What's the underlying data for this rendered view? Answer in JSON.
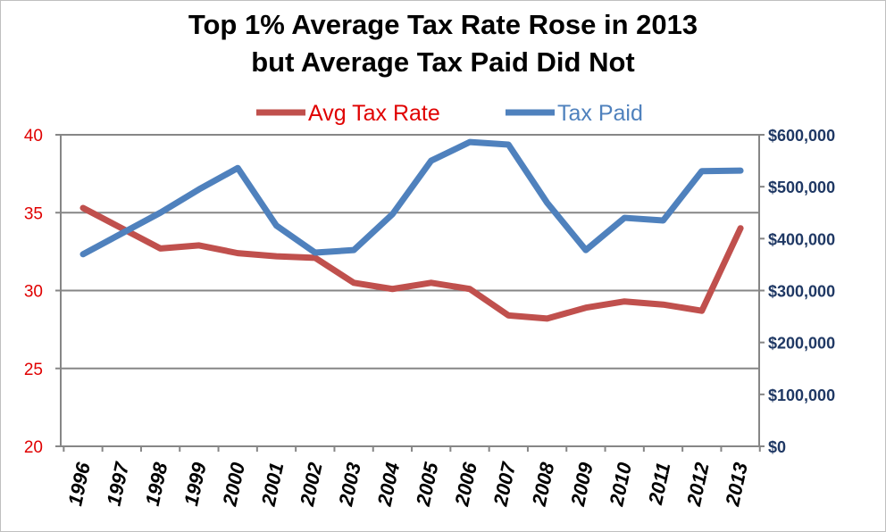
{
  "chart_data": {
    "type": "line",
    "title": "Top 1% Average Tax Rate Rose in 2013",
    "subtitle": "but Average Tax Paid Did Not",
    "categories": [
      "1996",
      "1997",
      "1998",
      "1999",
      "2000",
      "2001",
      "2002",
      "2003",
      "2004",
      "2005",
      "2006",
      "2007",
      "2008",
      "2009",
      "2010",
      "2011",
      "2012",
      "2013"
    ],
    "series": [
      {
        "name": "Avg Tax Rate",
        "axis": "left",
        "color": "#c0504d",
        "values": [
          35.3,
          34.0,
          32.7,
          32.9,
          32.4,
          32.2,
          32.1,
          30.5,
          30.1,
          30.5,
          30.1,
          28.4,
          28.2,
          28.9,
          29.3,
          29.1,
          28.7,
          34.0
        ]
      },
      {
        "name": "Tax Paid",
        "axis": "right",
        "color": "#4f81bd",
        "values": [
          370000,
          410000,
          450000,
          495000,
          536000,
          425000,
          373000,
          378000,
          447000,
          550000,
          586000,
          581000,
          469000,
          378000,
          440000,
          435000,
          530000,
          531000
        ]
      }
    ],
    "y_left": {
      "range": [
        20,
        40
      ],
      "ticks": [
        "20",
        "25",
        "30",
        "35",
        "40"
      ],
      "tick_color": "#e00000"
    },
    "y_right": {
      "range": [
        0,
        600000
      ],
      "ticks": [
        "$0",
        "$100,000",
        "$200,000",
        "$300,000",
        "$400,000",
        "$500,000",
        "$600,000"
      ],
      "tick_color": "#1f3864"
    },
    "grid": true,
    "legend": "top"
  }
}
